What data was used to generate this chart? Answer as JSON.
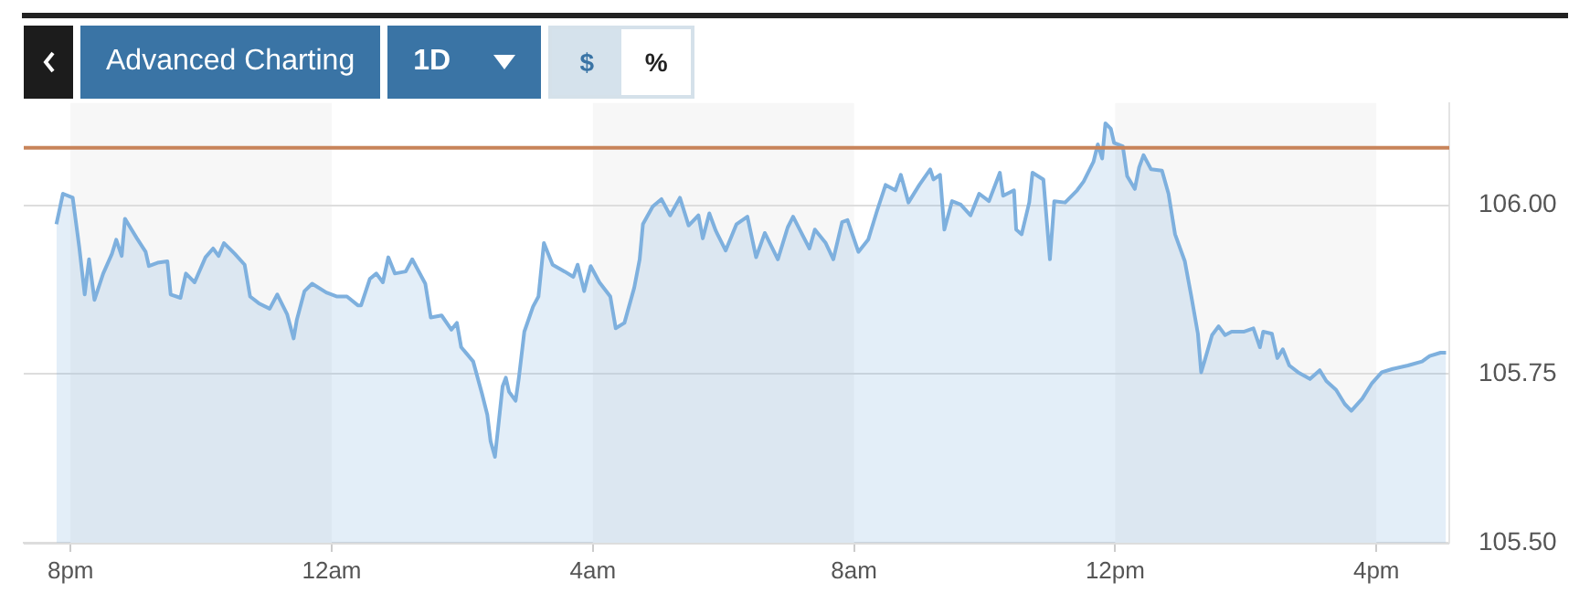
{
  "chart_data": {
    "type": "area",
    "annotations": [
      "Advanced Charting",
      "1D",
      "$",
      "%"
    ],
    "x": [
      "--01-01T19:47",
      "--01-01T19:53",
      "--01-01T20:02",
      "--01-01T20:08",
      "--01-01T20:13",
      "--01-01T20:17",
      "--01-01T20:22",
      "--01-01T20:30",
      "--01-01T20:38",
      "--01-01T20:42",
      "--01-01T20:47",
      "--01-01T20:50",
      "--01-01T21:01",
      "--01-01T21:09",
      "--01-01T21:12",
      "--01-01T21:20",
      "--01-01T21:29",
      "--01-01T21:32",
      "--01-01T21:41",
      "--01-01T21:46",
      "--01-01T21:54",
      "--01-01T22:04",
      "--01-01T22:11",
      "--01-01T22:16",
      "--01-01T22:21",
      "--01-01T22:31",
      "--01-01T22:40",
      "--01-01T22:45",
      "--01-01T22:53",
      "--01-01T23:03",
      "--01-01T23:10",
      "--01-01T23:19",
      "--01-01T23:25",
      "--01-01T23:28",
      "--01-01T23:35",
      "--01-01T23:42",
      "--01-01T23:55",
      "--01-02T00:05",
      "--01-02T00:14",
      "--01-02T00:24",
      "--01-02T00:27",
      "--01-02T00:35",
      "--01-02T00:41",
      "--01-02T00:47",
      "--01-02T00:52",
      "--01-02T00:58",
      "--01-02T01:08",
      "--01-02T01:14",
      "--01-02T01:26",
      "--01-02T01:31",
      "--01-02T01:41",
      "--01-02T01:50",
      "--01-02T01:55",
      "--01-02T01:59",
      "--01-02T02:10",
      "--01-02T02:18",
      "--01-02T02:23",
      "--01-02T02:26",
      "--01-02T02:30",
      "--01-02T02:33",
      "--01-02T02:37",
      "--01-02T02:40",
      "--01-02T02:43",
      "--01-02T02:49",
      "--01-02T02:52",
      "--01-02T02:57",
      "--01-02T03:05",
      "--01-02T03:10",
      "--01-02T03:15",
      "--01-02T03:23",
      "--01-02T03:34",
      "--01-02T03:42",
      "--01-02T03:46",
      "--01-02T03:52",
      "--01-02T03:58",
      "--01-02T04:06",
      "--01-02T04:16",
      "--01-02T04:21",
      "--01-02T04:29",
      "--01-02T04:38",
      "--01-02T04:43",
      "--01-02T04:46",
      "--01-02T04:55",
      "--01-02T05:03",
      "--01-02T05:11",
      "--01-02T05:20",
      "--01-02T05:28",
      "--01-02T05:37",
      "--01-02T05:41",
      "--01-02T05:47",
      "--01-02T05:53",
      "--01-02T06:02",
      "--01-02T06:12",
      "--01-02T06:22",
      "--01-02T06:30",
      "--01-02T06:38",
      "--01-02T06:50",
      "--01-02T06:59",
      "--01-02T07:04",
      "--01-02T07:19",
      "--01-02T07:24",
      "--01-02T07:34",
      "--01-02T07:41",
      "--01-02T07:49",
      "--01-02T07:54",
      "--01-02T08:04",
      "--01-02T08:13",
      "--01-02T08:21",
      "--01-02T08:29",
      "--01-02T08:38",
      "--01-02T08:43",
      "--01-02T08:50",
      "--01-02T09:00",
      "--01-02T09:10",
      "--01-02T09:13",
      "--01-02T09:19",
      "--01-02T09:23",
      "--01-02T09:30",
      "--01-02T09:38",
      "--01-02T09:47",
      "--01-02T09:55",
      "--01-02T10:04",
      "--01-02T10:14",
      "--01-02T10:17",
      "--01-02T10:27",
      "--01-02T10:29",
      "--01-02T10:34",
      "--01-02T10:41",
      "--01-02T10:44",
      "--01-02T10:54",
      "--01-02T11:00",
      "--01-02T11:04",
      "--01-02T11:14",
      "--01-02T11:25",
      "--01-02T11:31",
      "--01-02T11:40",
      "--01-02T11:44",
      "--01-02T11:48",
      "--01-02T11:51",
      "--01-02T11:56",
      "--01-02T11:59",
      "--01-02T12:07",
      "--01-02T12:11",
      "--01-02T12:18",
      "--01-02T12:22",
      "--01-02T12:26",
      "--01-02T12:33",
      "--01-02T12:43",
      "--01-02T12:49",
      "--01-02T12:55",
      "--01-02T13:04",
      "--01-02T13:10",
      "--01-02T13:16",
      "--01-02T13:19",
      "--01-02T13:22",
      "--01-02T13:29",
      "--01-02T13:35",
      "--01-02T13:41",
      "--01-02T13:47",
      "--01-02T13:58",
      "--01-02T14:07",
      "--01-02T14:13",
      "--01-02T14:16",
      "--01-02T14:24",
      "--01-02T14:29",
      "--01-02T14:34",
      "--01-02T14:40",
      "--01-02T14:48",
      "--01-02T14:59",
      "--01-02T15:08",
      "--01-02T15:14",
      "--01-02T15:23",
      "--01-02T15:31",
      "--01-02T15:37",
      "--01-02T15:47",
      "--01-02T15:56",
      "--01-02T16:05",
      "--01-02T16:15",
      "--01-02T16:29",
      "--01-02T16:42",
      "--01-02T16:49",
      "--01-02T16:59",
      "--01-02T17:04"
    ],
    "series": [
      {
        "color": "#7eb0de",
        "values": [
          105.971,
          106.016,
          106.01,
          105.937,
          105.867,
          105.919,
          105.859,
          105.898,
          105.927,
          105.948,
          105.924,
          105.979,
          105.95,
          105.93,
          105.909,
          105.914,
          105.916,
          105.867,
          105.862,
          105.898,
          105.885,
          105.922,
          105.935,
          105.924,
          105.943,
          105.927,
          105.911,
          105.864,
          105.854,
          105.846,
          105.867,
          105.838,
          105.802,
          105.83,
          105.872,
          105.883,
          105.87,
          105.864,
          105.864,
          105.851,
          105.851,
          105.89,
          105.898,
          105.885,
          105.922,
          105.898,
          105.901,
          105.919,
          105.883,
          105.833,
          105.836,
          105.815,
          105.825,
          105.789,
          105.768,
          105.721,
          105.689,
          105.65,
          105.627,
          105.671,
          105.731,
          105.744,
          105.723,
          105.71,
          105.744,
          105.812,
          105.849,
          105.864,
          105.943,
          105.911,
          105.901,
          105.893,
          105.911,
          105.872,
          105.909,
          105.885,
          105.864,
          105.817,
          105.825,
          105.877,
          105.919,
          105.971,
          105.997,
          106.008,
          105.984,
          106.01,
          105.969,
          105.984,
          105.95,
          105.987,
          105.961,
          105.932,
          105.971,
          105.982,
          105.922,
          105.958,
          105.919,
          105.966,
          105.982,
          105.935,
          105.963,
          105.943,
          105.919,
          105.974,
          105.977,
          105.93,
          105.948,
          105.99,
          106.029,
          106.021,
          106.044,
          106.003,
          106.029,
          106.052,
          106.037,
          106.044,
          105.963,
          106.005,
          106.0,
          105.984,
          106.016,
          106.005,
          106.047,
          106.013,
          106.021,
          105.963,
          105.956,
          106.003,
          106.047,
          106.037,
          105.919,
          106.005,
          106.003,
          106.021,
          106.034,
          106.063,
          106.089,
          106.068,
          106.12,
          106.112,
          106.091,
          106.086,
          106.042,
          106.023,
          106.055,
          106.073,
          106.052,
          106.05,
          106.016,
          105.956,
          105.916,
          105.864,
          105.809,
          105.752,
          105.768,
          105.807,
          105.82,
          105.807,
          105.812,
          105.812,
          105.817,
          105.789,
          105.812,
          105.809,
          105.773,
          105.786,
          105.762,
          105.752,
          105.742,
          105.755,
          105.739,
          105.726,
          105.705,
          105.695,
          105.713,
          105.736,
          105.752,
          105.757,
          105.762,
          105.768,
          105.776,
          105.781,
          105.781
        ]
      }
    ],
    "xlim": [
      "--01-01T19:17",
      "--01-02T17:07"
    ],
    "xticks": [
      {
        "value": "--01-01T20:00",
        "label": "8pm"
      },
      {
        "value": "--01-02T00:00",
        "label": "12am"
      },
      {
        "value": "--01-02T04:00",
        "label": "4am"
      },
      {
        "value": "--01-02T08:00",
        "label": "8am"
      },
      {
        "value": "--01-02T12:00",
        "label": "12pm"
      },
      {
        "value": "--01-02T16:00",
        "label": "4pm"
      }
    ],
    "ylim": [
      105.5,
      106.15
    ],
    "yticks": [
      {
        "value": 105.5,
        "label": "105.50"
      },
      {
        "value": 105.75,
        "label": "105.75"
      },
      {
        "value": 106,
        "label": "106.00"
      }
    ],
    "ref_lines": [
      {
        "axis": "y",
        "value": 106.084,
        "color": "#c8845a"
      }
    ],
    "bands": [
      {
        "axis": "x",
        "from": "--01-01T20:00",
        "to": "--01-02T00:00",
        "color": "#f7f7f7"
      },
      {
        "axis": "x",
        "from": "--01-02T04:00",
        "to": "--01-02T08:00",
        "color": "#f7f7f7"
      },
      {
        "axis": "x",
        "from": "--01-02T12:00",
        "to": "--01-02T16:00",
        "color": "#f7f7f7"
      }
    ],
    "grid": "y",
    "legend": false,
    "marker": "none",
    "line_style": "solid"
  }
}
